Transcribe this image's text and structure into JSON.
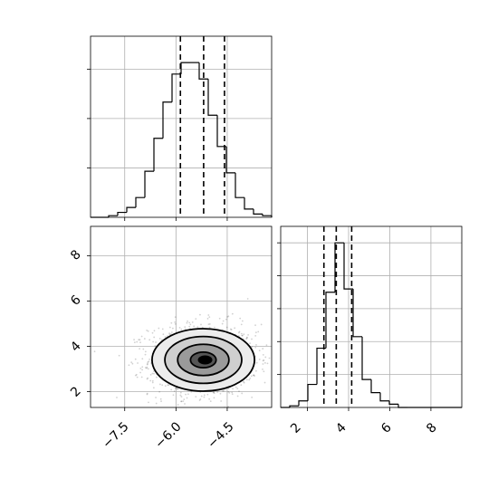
{
  "chart_data": {
    "type": "corner",
    "parameters": [
      "",
      ""
    ],
    "grid": true,
    "quantile_style": "dashed",
    "panels": [
      {
        "id": "hist-param1",
        "type": "histogram",
        "xlim": [
          -8.5,
          -3.2
        ],
        "bin_edges": [
          -8.5,
          -8.235,
          -7.97,
          -7.705,
          -7.44,
          -7.175,
          -6.91,
          -6.645,
          -6.38,
          -6.115,
          -5.85,
          -5.585,
          -5.32,
          -5.055,
          -4.79,
          -4.525,
          -4.26,
          -3.995,
          -3.73,
          -3.465,
          -3.2
        ],
        "counts": [
          0,
          0,
          0.01,
          0.03,
          0.06,
          0.12,
          0.28,
          0.48,
          0.7,
          0.87,
          0.94,
          0.94,
          0.84,
          0.62,
          0.43,
          0.27,
          0.12,
          0.05,
          0.02,
          0.01
        ],
        "quantiles": [
          -5.87,
          -5.19,
          -4.58
        ],
        "ylim": [
          0,
          1.1
        ],
        "ytick_values": [
          0.3,
          0.6,
          0.9
        ]
      },
      {
        "id": "hist-param2",
        "type": "histogram",
        "xlim": [
          0.7,
          9.5
        ],
        "bin_edges": [
          0.7,
          1.14,
          1.58,
          2.02,
          2.46,
          2.9,
          3.34,
          3.78,
          4.22,
          4.66,
          5.1,
          5.54,
          5.98,
          6.42,
          6.86,
          7.3,
          7.74,
          8.18,
          8.62,
          9.06,
          9.5
        ],
        "counts": [
          0,
          0.01,
          0.04,
          0.14,
          0.36,
          0.7,
          1.0,
          0.72,
          0.43,
          0.17,
          0.09,
          0.04,
          0.02,
          0,
          0,
          0,
          0,
          0,
          0,
          0
        ],
        "quantiles": [
          2.8,
          3.4,
          4.15
        ],
        "ylim": [
          0,
          1.1
        ],
        "ytick_values": [
          0.2,
          0.4,
          0.6,
          0.8,
          1.0
        ]
      },
      {
        "id": "density-2d",
        "type": "2d-density",
        "xlim": [
          -8.5,
          -3.2
        ],
        "ylim": [
          1.3,
          9.3
        ],
        "center": [
          -5.2,
          3.4
        ],
        "sigma": [
          0.75,
          0.75
        ],
        "samples_shown": 1400,
        "contour_levels_sigma": [
          0.5,
          1.0,
          1.5,
          2.0
        ]
      }
    ],
    "x_axis_bottom_left": {
      "ticks": [
        -7.5,
        -6.0,
        -4.5
      ],
      "tick_labels": [
        "−7.5",
        "−6.0",
        "−4.5"
      ]
    },
    "x_axis_bottom_right": {
      "ticks": [
        2,
        4,
        6,
        8
      ],
      "tick_labels": [
        "2",
        "4",
        "6",
        "8"
      ]
    },
    "y_axis_left": {
      "ticks": [
        2,
        4,
        6,
        8
      ],
      "tick_labels": [
        "2",
        "4",
        "6",
        "8"
      ]
    }
  }
}
